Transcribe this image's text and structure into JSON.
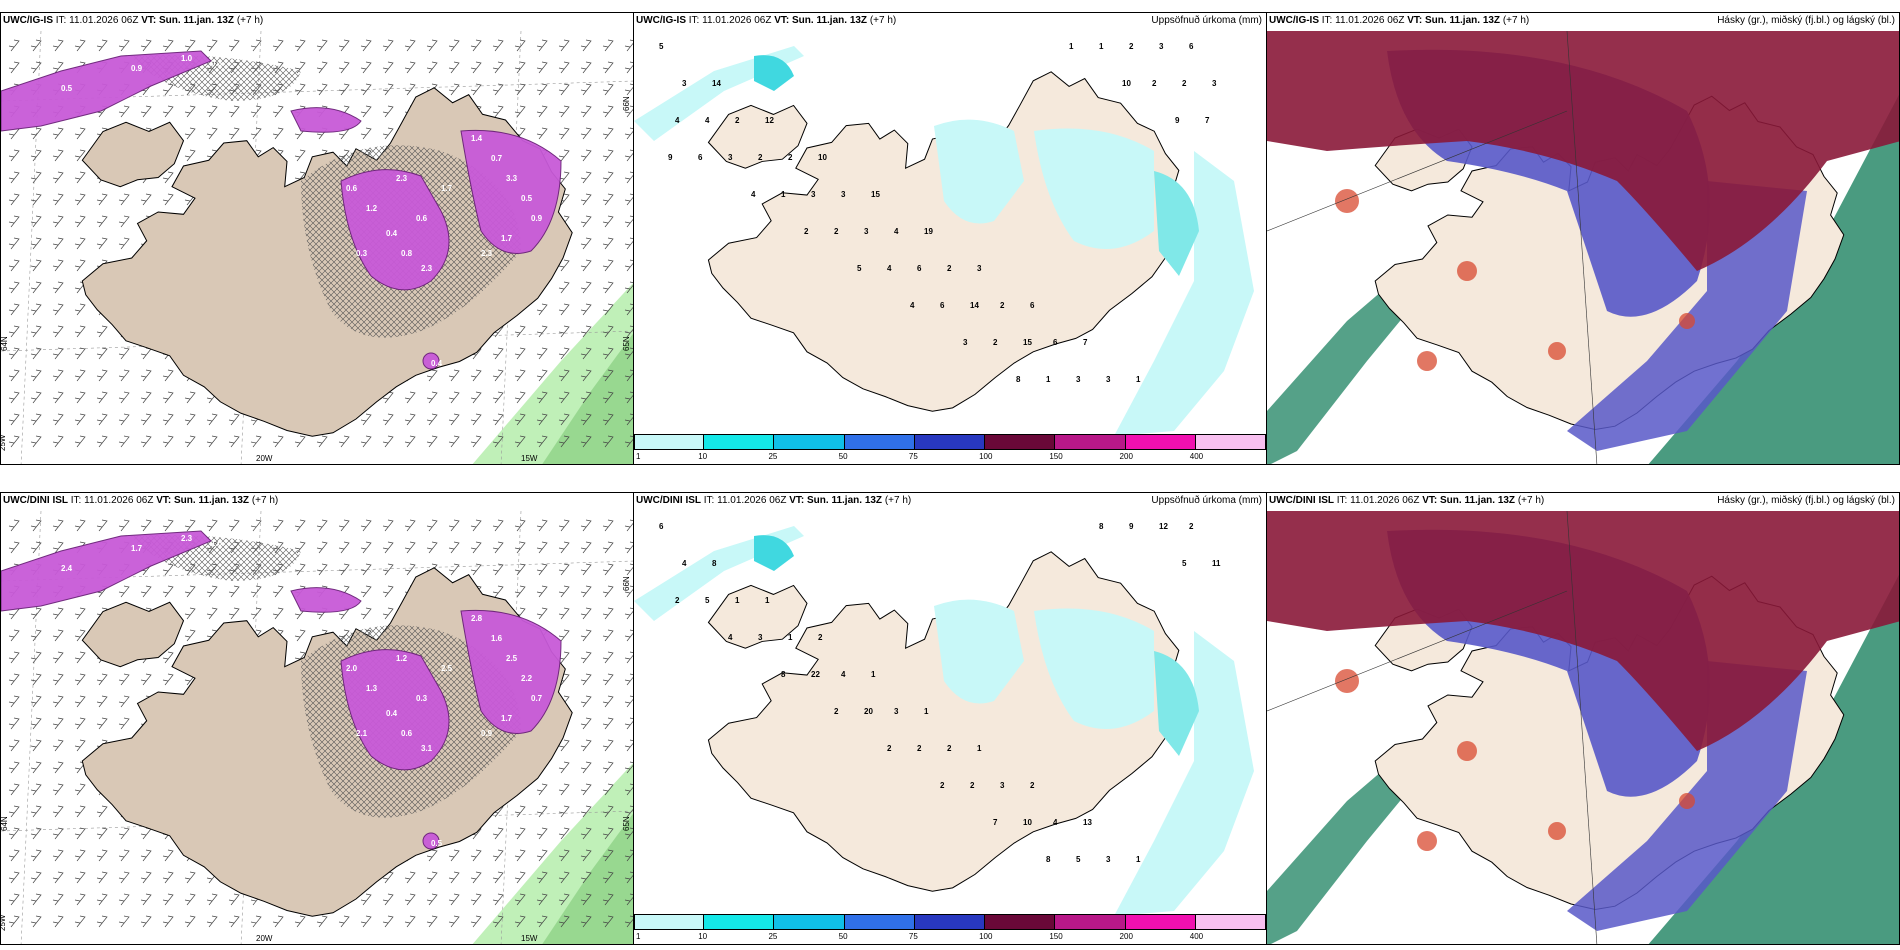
{
  "rows": [
    {
      "model": "UWC/IG-IS",
      "it_label": "IT:",
      "it_value": "11.01.2026 06Z",
      "vt_label": "VT:",
      "vt_value": "Sun. 11.jan. 13Z",
      "lead": "(+7 h)",
      "precip_numbers": [
        "5",
        "14",
        "12",
        "10",
        "15",
        "19",
        "3",
        "6",
        "7",
        "1",
        "6",
        "3",
        "2",
        "2",
        "3",
        "4",
        "2",
        "2",
        "6",
        "3",
        "3",
        "3",
        "4",
        "2",
        "3",
        "3",
        "6",
        "14",
        "15",
        "3",
        "2",
        "2",
        "4",
        "3",
        "1",
        "2",
        "4",
        "6",
        "2",
        "1",
        "1",
        "2",
        "7",
        "6",
        "4",
        "2",
        "5",
        "4",
        "3",
        "8",
        "1",
        "10",
        "9",
        "9"
      ],
      "snow_numbers": [
        "0.5",
        "0.9",
        "1.0",
        "0.3",
        "0.6",
        "1.2",
        "0.4",
        "0.8",
        "2.3",
        "1.4",
        "0.7",
        "3.3",
        "0.5",
        "0.9",
        "1.7",
        "2.3",
        "1.7",
        "0.6",
        "2.3",
        "0.3",
        "0.4"
      ]
    },
    {
      "model": "UWC/DINI ISL",
      "it_label": "IT:",
      "it_value": "11.01.2026 06Z",
      "vt_label": "VT:",
      "vt_value": "Sun. 11.jan. 13Z",
      "lead": "(+7 h)",
      "precip_numbers": [
        "6",
        "8",
        "1",
        "2",
        "1",
        "1",
        "1",
        "2",
        "13",
        "1",
        "2",
        "4",
        "1",
        "1",
        "4",
        "3",
        "2",
        "3",
        "4",
        "3",
        "12",
        "11",
        "5",
        "3",
        "22",
        "20",
        "2",
        "2",
        "10",
        "5",
        "9",
        "5",
        "2",
        "4",
        "8",
        "2",
        "2",
        "2",
        "7",
        "8",
        "8"
      ],
      "snow_numbers": [
        "2.4",
        "1.7",
        "2.3",
        "1.0",
        "2.0",
        "1.3",
        "0.4",
        "0.6",
        "3.1",
        "2.8",
        "1.6",
        "2.5",
        "2.2",
        "0.7",
        "1.7",
        "0.9",
        "2.5",
        "0.3",
        "1.2",
        "2.1",
        "0.5"
      ]
    }
  ],
  "precip_panel_label": "Uppsöfnuð úrkoma (mm)",
  "cloud_panel_label": "Hásky (gr.), miðský (fj.bl.) og lágský (bl.)",
  "colorbar": {
    "ticks": [
      "1",
      "10",
      "25",
      "50",
      "75",
      "100",
      "150",
      "200",
      "400"
    ],
    "colors": [
      "#c8f8f8",
      "#14e8e8",
      "#10c0e8",
      "#3070e8",
      "#2838c0",
      "#6a0838",
      "#b81888",
      "#f010b0",
      "#f8c0f0"
    ]
  },
  "grid_labels": {
    "lon": [
      "20W",
      "15W"
    ],
    "lat": [
      "65N",
      "64N"
    ],
    "lon_left": "25W",
    "lat_side": "66N"
  },
  "colors": {
    "land": "#f5e9dc",
    "sea": "#ffffff",
    "snow_land": "#d9c8b6",
    "purple": "#c85ad8",
    "light_cyan": "#c8f8f8",
    "maroon": "#8a1838",
    "blue": "#5858c8",
    "green": "#2a8a6a",
    "wind_green": "#c0f0b8"
  }
}
